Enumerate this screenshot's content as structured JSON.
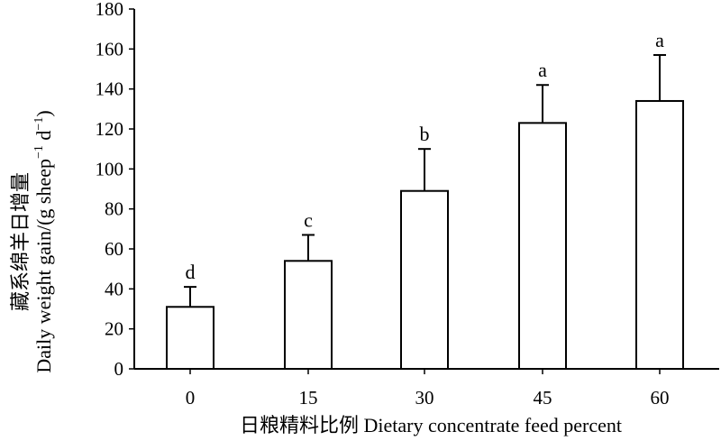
{
  "chart_data": {
    "type": "bar",
    "categories": [
      "0",
      "15",
      "30",
      "45",
      "60"
    ],
    "values": [
      31,
      54,
      89,
      123,
      134
    ],
    "error": [
      10,
      13,
      21,
      19,
      23
    ],
    "significance": [
      "d",
      "c",
      "b",
      "a",
      "a"
    ],
    "xlabel": "日粮精料比例 Dietary concentrate feed percent",
    "ylabel": {
      "line1": "藏系绵羊日增量",
      "line2_prefix": "Daily weight gain/(g  sheep",
      "sup1": "−1",
      "line2_middle": " d",
      "sup2": "−1",
      "line2_suffix": ")"
    },
    "ylim": [
      0,
      180
    ],
    "yticks": [
      0,
      20,
      40,
      60,
      80,
      100,
      120,
      140,
      160,
      180
    ],
    "grid": false,
    "colors": {
      "bar_fill": "#ffffff",
      "bar_stroke": "#000000",
      "axis": "#000000"
    }
  }
}
